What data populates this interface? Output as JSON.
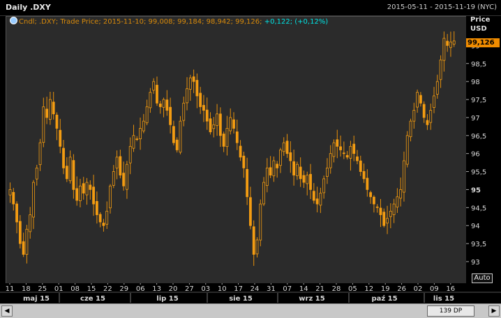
{
  "header": {
    "title": "Daily .DXY",
    "date_range": "2015-05-11 - 2015-11-19 (NYC)"
  },
  "legend": {
    "prefix": "Cndl; .DXY; Trade Price; 2015-11-10; 99,008; 99,184; 98,942; 99,126;",
    "change": "+0,122; (+0,12%)"
  },
  "axis": {
    "price_label": "Price",
    "currency_label": "USD",
    "last_price": "99,126",
    "auto_label": "Auto"
  },
  "scrollbar": {
    "left_arrow": "◀",
    "thumb_label": "139 DP",
    "right_arrow": "▶"
  },
  "chart_data": {
    "type": "candlestick",
    "ylim": [
      92.4,
      99.8
    ],
    "y_ticks": [
      "93",
      "93,5",
      "94",
      "94,5",
      "95",
      "95,5",
      "96",
      "96,5",
      "97",
      "97,5",
      "98",
      "98,5",
      "99"
    ],
    "y_tick_values": [
      93,
      93.5,
      94,
      94.5,
      95,
      95.5,
      96,
      96.5,
      97,
      97.5,
      98,
      98.5,
      99
    ],
    "bold_tick": "95",
    "x_day_labels": [
      "11",
      "18",
      "25",
      "01",
      "08",
      "15",
      "22",
      "29",
      "06",
      "13",
      "20",
      "27",
      "03",
      "10",
      "17",
      "24",
      "31",
      "07",
      "14",
      "21",
      "28",
      "05",
      "12",
      "19",
      "26",
      "02",
      "09",
      "16"
    ],
    "x_month_labels": [
      "maj 15",
      "cze 15",
      "lip 15",
      "sie 15",
      "wrz 15",
      "paź 15",
      "lis 15"
    ],
    "closes": [
      95.0,
      94.6,
      94.1,
      93.5,
      93.2,
      93.9,
      94.3,
      95.2,
      95.6,
      96.3,
      97.3,
      97.0,
      97.5,
      97.1,
      96.7,
      96.2,
      95.6,
      95.3,
      95.9,
      95.0,
      94.7,
      95.1,
      94.9,
      95.2,
      95.0,
      94.6,
      94.3,
      94.1,
      94.0,
      94.4,
      95.1,
      95.5,
      95.9,
      95.4,
      95.1,
      95.7,
      96.2,
      96.5,
      96.4,
      96.7,
      96.9,
      97.3,
      97.7,
      98.0,
      97.4,
      97.3,
      97.5,
      97.2,
      96.8,
      96.3,
      96.1,
      96.9,
      97.4,
      97.8,
      98.1,
      98.0,
      97.6,
      97.3,
      97.2,
      96.9,
      96.6,
      96.8,
      97.1,
      96.5,
      96.2,
      96.7,
      97.0,
      96.7,
      96.3,
      95.9,
      95.6,
      94.8,
      94.0,
      93.2,
      93.6,
      94.6,
      95.2,
      95.6,
      95.4,
      95.8,
      95.6,
      96.1,
      96.3,
      96.0,
      95.8,
      95.4,
      95.7,
      95.3,
      95.2,
      95.4,
      95.0,
      94.7,
      94.6,
      94.9,
      95.3,
      95.6,
      96.0,
      96.3,
      96.2,
      96.1,
      96.0,
      95.9,
      96.2,
      96.0,
      95.8,
      95.5,
      95.3,
      95.0,
      94.8,
      94.6,
      94.5,
      94.3,
      94.0,
      94.2,
      94.4,
      94.6,
      94.8,
      95.0,
      95.8,
      96.5,
      96.9,
      97.2,
      97.7,
      97.4,
      97.0,
      96.8,
      97.2,
      97.6,
      98.0,
      98.6,
      99.2,
      99.0,
      99.1,
      99.126
    ]
  }
}
